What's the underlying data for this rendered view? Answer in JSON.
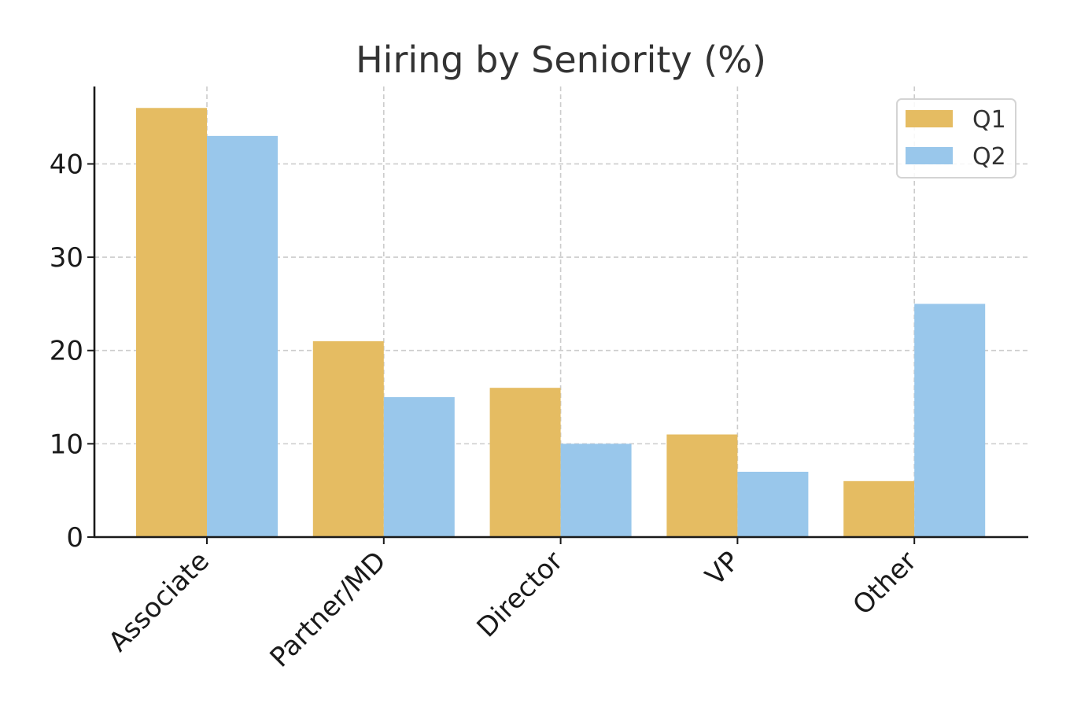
{
  "chart_data": {
    "type": "bar",
    "title": "Hiring by Seniority (%)",
    "xlabel": "",
    "ylabel": "",
    "categories": [
      "Associate",
      "Partner/MD",
      "Director",
      "VP",
      "Other"
    ],
    "series": [
      {
        "name": "Q1",
        "values": [
          46,
          21,
          16,
          11,
          6
        ],
        "color": "#E5BC62"
      },
      {
        "name": "Q2",
        "values": [
          43,
          15,
          10,
          7,
          25
        ],
        "color": "#99C7EB"
      }
    ],
    "yticks": [
      0,
      10,
      20,
      30,
      40
    ],
    "ylim": [
      0,
      48.3
    ],
    "grid": true,
    "legend_position": "top-right"
  }
}
